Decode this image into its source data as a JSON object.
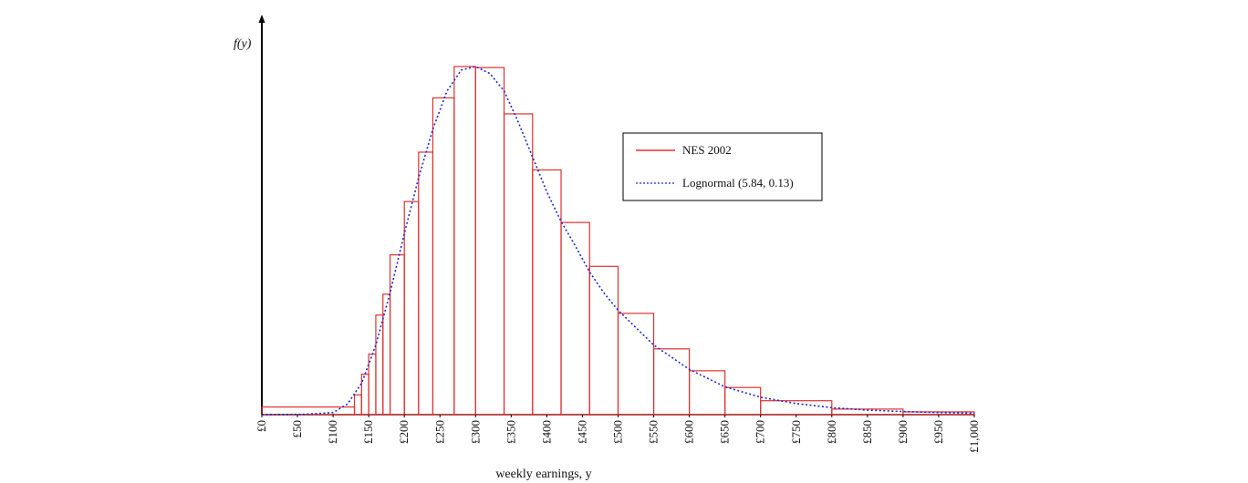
{
  "chart_data": {
    "type": "bar",
    "title": "",
    "ylabel": "f(y)",
    "xlabel": "weekly earnings, y",
    "xlim": [
      0,
      1000
    ],
    "ylim": [
      0,
      1
    ],
    "x_ticks": [
      "£0",
      "£50",
      "£100",
      "£150",
      "£200",
      "£250",
      "£300",
      "£350",
      "£400",
      "£450",
      "£500",
      "£550",
      "£600",
      "£650",
      "£700",
      "£750",
      "£800",
      "£850",
      "£900",
      "£950",
      "£1,000"
    ],
    "legend": {
      "position": "right",
      "entries": [
        {
          "label": "NES 2002",
          "style": "solid",
          "color": "#e03030"
        },
        {
          "label": "Lognormal (5.84, 0.13)",
          "style": "dotted",
          "color": "#1a2ad0"
        }
      ]
    },
    "series": [
      {
        "name": "NES 2002",
        "kind": "histogram",
        "color": "#e03030",
        "bins": [
          {
            "x0": 0,
            "x1": 130,
            "density": 0.022
          },
          {
            "x0": 130,
            "x1": 140,
            "density": 0.057
          },
          {
            "x0": 140,
            "x1": 150,
            "density": 0.116
          },
          {
            "x0": 150,
            "x1": 160,
            "density": 0.174
          },
          {
            "x0": 160,
            "x1": 170,
            "density": 0.286
          },
          {
            "x0": 170,
            "x1": 180,
            "density": 0.346
          },
          {
            "x0": 180,
            "x1": 200,
            "density": 0.459
          },
          {
            "x0": 200,
            "x1": 220,
            "density": 0.612
          },
          {
            "x0": 220,
            "x1": 240,
            "density": 0.754
          },
          {
            "x0": 240,
            "x1": 270,
            "density": 0.91
          },
          {
            "x0": 270,
            "x1": 300,
            "density": 1.0
          },
          {
            "x0": 300,
            "x1": 340,
            "density": 0.997
          },
          {
            "x0": 340,
            "x1": 380,
            "density": 0.864
          },
          {
            "x0": 380,
            "x1": 420,
            "density": 0.703
          },
          {
            "x0": 420,
            "x1": 460,
            "density": 0.552
          },
          {
            "x0": 460,
            "x1": 500,
            "density": 0.426
          },
          {
            "x0": 500,
            "x1": 550,
            "density": 0.291
          },
          {
            "x0": 550,
            "x1": 600,
            "density": 0.189
          },
          {
            "x0": 600,
            "x1": 650,
            "density": 0.126
          },
          {
            "x0": 650,
            "x1": 700,
            "density": 0.078
          },
          {
            "x0": 700,
            "x1": 800,
            "density": 0.04
          },
          {
            "x0": 800,
            "x1": 900,
            "density": 0.016
          },
          {
            "x0": 900,
            "x1": 1000,
            "density": 0.008
          }
        ]
      },
      {
        "name": "Lognormal (5.84, 0.13)",
        "kind": "curve",
        "color": "#1a2ad0",
        "points": [
          [
            0,
            0
          ],
          [
            60,
            0.001
          ],
          [
            100,
            0.006
          ],
          [
            120,
            0.03
          ],
          [
            140,
            0.09
          ],
          [
            160,
            0.2
          ],
          [
            180,
            0.35
          ],
          [
            200,
            0.52
          ],
          [
            220,
            0.68
          ],
          [
            240,
            0.82
          ],
          [
            260,
            0.93
          ],
          [
            280,
            0.99
          ],
          [
            300,
            1.0
          ],
          [
            320,
            0.98
          ],
          [
            340,
            0.93
          ],
          [
            360,
            0.84
          ],
          [
            380,
            0.74
          ],
          [
            400,
            0.64
          ],
          [
            420,
            0.555
          ],
          [
            440,
            0.485
          ],
          [
            460,
            0.41
          ],
          [
            480,
            0.35
          ],
          [
            500,
            0.3
          ],
          [
            550,
            0.2
          ],
          [
            600,
            0.13
          ],
          [
            650,
            0.08
          ],
          [
            700,
            0.05
          ],
          [
            750,
            0.032
          ],
          [
            800,
            0.02
          ],
          [
            850,
            0.013
          ],
          [
            900,
            0.009
          ],
          [
            950,
            0.006
          ],
          [
            1000,
            0.004
          ]
        ]
      }
    ],
    "grid": false
  }
}
